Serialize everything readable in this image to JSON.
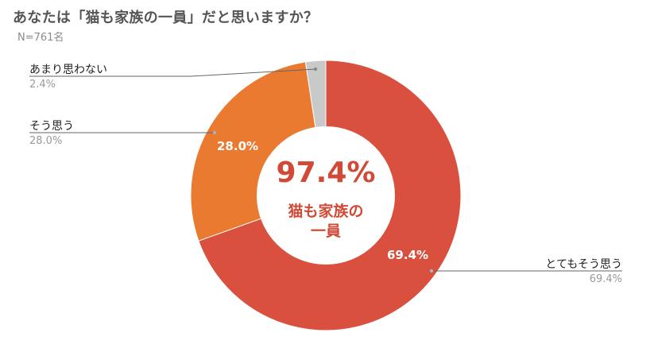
{
  "header": {
    "title": "あなたは「猫も家族の一員」だと思いますか？",
    "sample_size": "N=761名"
  },
  "center": {
    "value": "97.4%",
    "caption_line1": "猫も家族の",
    "caption_line2": "一員"
  },
  "labels": {
    "slice0_name": "とてもそう思う",
    "slice0_value": "69.4%",
    "slice1_name": "そう思う",
    "slice1_value": "28.0%",
    "slice2_name": "あまり思わない",
    "slice2_value": "2.4%"
  },
  "chart_data": {
    "type": "pie",
    "variant": "donut",
    "title": "あなたは「猫も家族の一員」だと思いますか？",
    "subtitle": "N=761名",
    "categories": [
      "とてもそう思う",
      "そう思う",
      "あまり思わない"
    ],
    "values": [
      69.4,
      28.0,
      2.4
    ],
    "unit": "%",
    "colors": [
      "#D9503F",
      "#EA7A30",
      "#C9C9C9"
    ],
    "center_annotation": "97.4% 猫も家族の一員",
    "start_angle_deg": 0,
    "direction": "clockwise",
    "legend": "none (leader-line labels)"
  }
}
